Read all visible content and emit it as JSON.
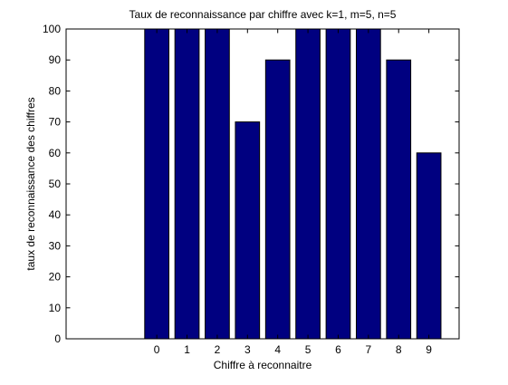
{
  "chart_data": {
    "type": "bar",
    "title": "Taux de reconnaissance par chiffre avec k=1, m=5, n=5",
    "xlabel": "Chiffre à reconnaitre",
    "ylabel": "taux de reconnaissance des chiffres",
    "categories": [
      "0",
      "1",
      "2",
      "3",
      "4",
      "5",
      "6",
      "7",
      "8",
      "9"
    ],
    "x": [
      0,
      1,
      2,
      3,
      4,
      5,
      6,
      7,
      8,
      9
    ],
    "values": [
      100,
      100,
      100,
      70,
      90,
      100,
      100,
      100,
      90,
      60
    ],
    "xlim": [
      -3,
      10
    ],
    "ylim": [
      0,
      100
    ],
    "yticks": [
      "0",
      "10",
      "20",
      "30",
      "40",
      "50",
      "60",
      "70",
      "80",
      "90",
      "100"
    ],
    "grid": false,
    "legend": "none",
    "bar_color": "#000080",
    "edge_color": "#000000"
  }
}
